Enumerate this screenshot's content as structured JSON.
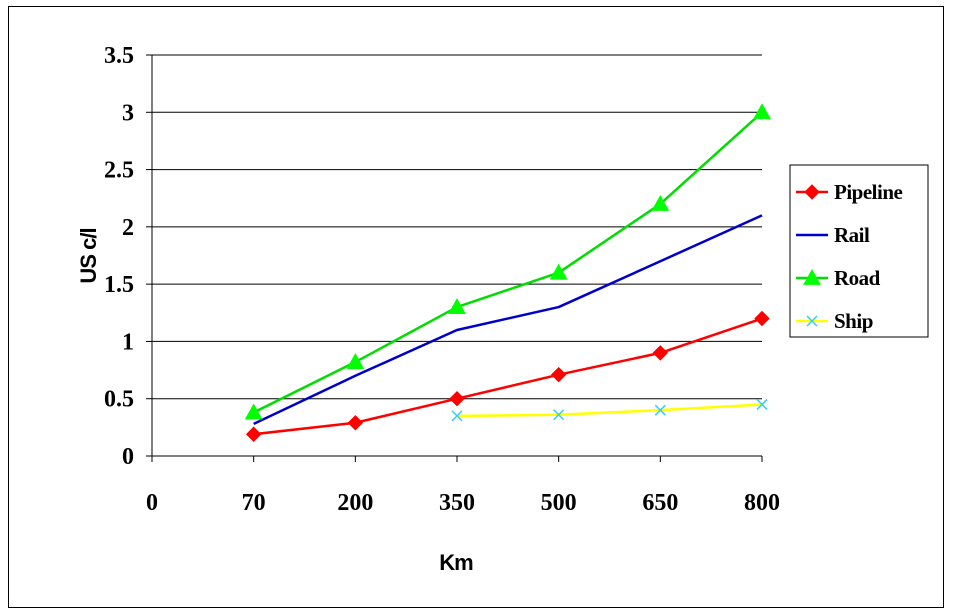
{
  "chart_data": {
    "type": "line",
    "xlabel": "Km",
    "ylabel": "US c/l",
    "categories": [
      "0",
      "70",
      "200",
      "350",
      "500",
      "650",
      "800"
    ],
    "ylim": [
      0,
      3.5
    ],
    "yticks": [
      "0",
      "0.5",
      "1",
      "1.5",
      "2",
      "2.5",
      "3",
      "3.5"
    ],
    "grid": "horizontal",
    "legend_position": "right",
    "series": [
      {
        "name": "Pipeline",
        "color": "#ff0000",
        "marker": "diamond",
        "marker_color": "#ff0000",
        "values": [
          null,
          0.19,
          0.29,
          0.5,
          0.71,
          0.9,
          1.2
        ]
      },
      {
        "name": "Rail",
        "color": "#0000cc",
        "marker": "none",
        "marker_color": "#0000cc",
        "values": [
          null,
          0.28,
          0.7,
          1.1,
          1.3,
          1.7,
          2.1
        ]
      },
      {
        "name": "Road",
        "color": "#00dd00",
        "marker": "triangle",
        "marker_color": "#00ff00",
        "values": [
          null,
          0.38,
          0.82,
          1.3,
          1.6,
          2.2,
          3.0
        ]
      },
      {
        "name": "Ship",
        "color": "#ffff00",
        "marker": "x",
        "marker_color": "#33ccff",
        "values": [
          null,
          null,
          null,
          0.35,
          0.36,
          0.4,
          0.45
        ]
      }
    ]
  }
}
